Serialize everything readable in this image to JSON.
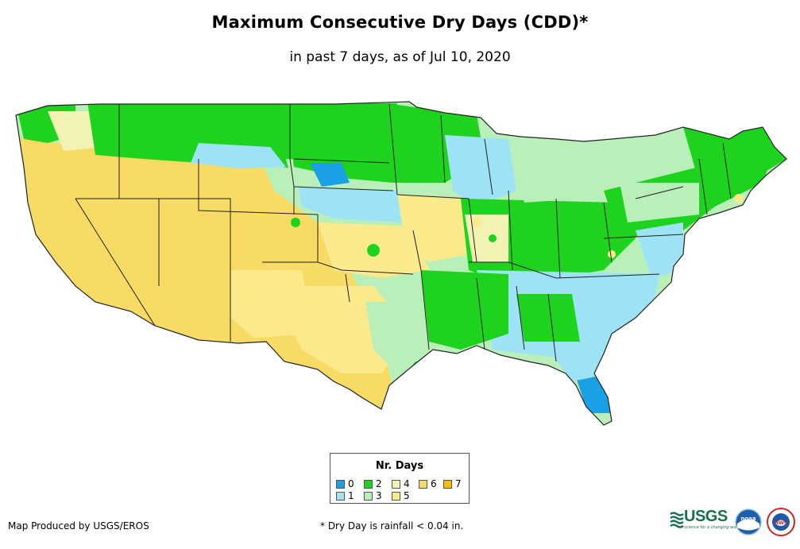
{
  "title": "Maximum Consecutive Dry Days (CDD)*",
  "subtitle": "in past 7 days, as of Jul 10, 2020",
  "legend": {
    "title": "Nr. Days",
    "items": [
      {
        "label": "0",
        "color": "#1aa0e6"
      },
      {
        "label": "1",
        "color": "#9ee3f5"
      },
      {
        "label": "2",
        "color": "#1ed31e"
      },
      {
        "label": "3",
        "color": "#b9f0b9"
      },
      {
        "label": "4",
        "color": "#f2f2b4"
      },
      {
        "label": "5",
        "color": "#fbea8c"
      },
      {
        "label": "6",
        "color": "#f8db64"
      },
      {
        "label": "7",
        "color": "#f5bc00"
      }
    ]
  },
  "credit": "Map Produced by USGS/EROS",
  "footnote": "* Dry Day is rainfall < 0.04 in.",
  "logos": {
    "usgs": "USGS",
    "usgs_tagline": "science for a changing world",
    "noaa": "noaa",
    "nws": "NWS"
  }
}
